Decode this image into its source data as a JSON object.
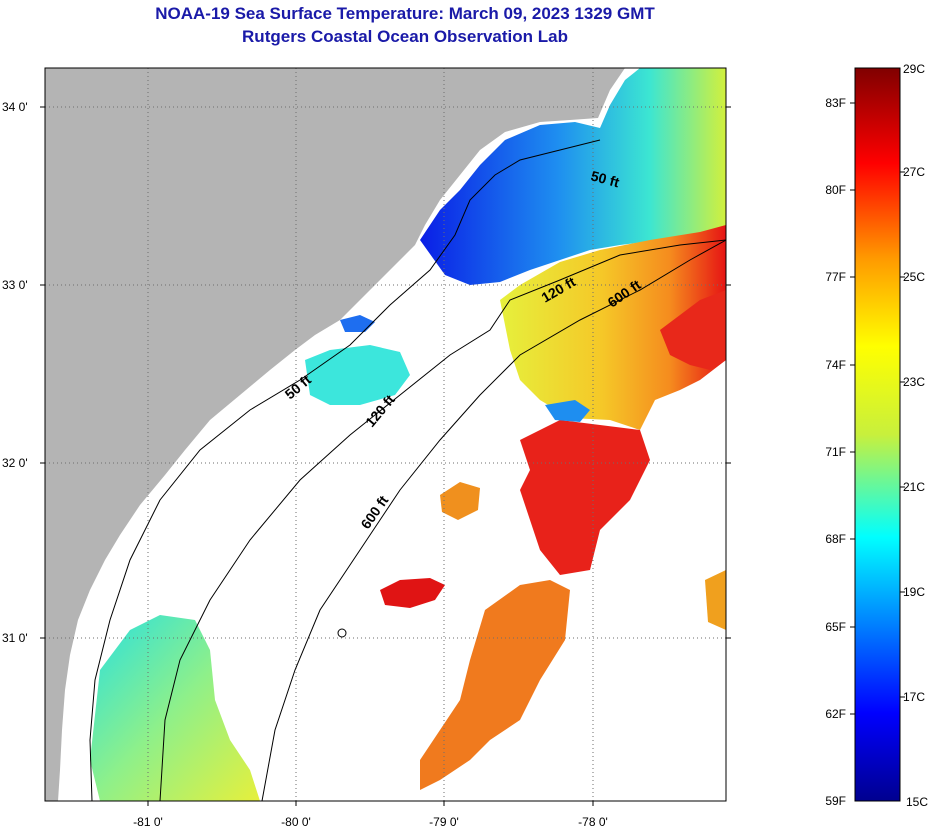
{
  "header": {
    "title": "NOAA-19 Sea Surface Temperature:  March 09, 2023 1329 GMT",
    "subtitle": "Rutgers Coastal Ocean Observation Lab"
  },
  "map": {
    "lat_labels": [
      "34 0'",
      "33 0'",
      "32 0'",
      "31 0'"
    ],
    "lon_labels": [
      "-81 0'",
      "-80 0'",
      "-79 0'",
      "-78 0'"
    ],
    "contour_labels": [
      "50 ft",
      "120 ft",
      "600 ft",
      "50 ft",
      "120 ft",
      "600 ft"
    ],
    "colors": {
      "land": "#b4b4b4",
      "cloud": "#ffffff",
      "cold": "#0a1ee6",
      "cool": "#1edcf0",
      "mild": "#d2f03c",
      "warm": "#f5a01e",
      "hot": "#e61414"
    }
  },
  "legend": {
    "fahrenheit": [
      "83F",
      "80F",
      "77F",
      "74F",
      "71F",
      "68F",
      "65F",
      "62F",
      "59F"
    ],
    "celsius": [
      "29C",
      "27C",
      "25C",
      "23C",
      "21C",
      "19C",
      "17C",
      "15C"
    ]
  }
}
